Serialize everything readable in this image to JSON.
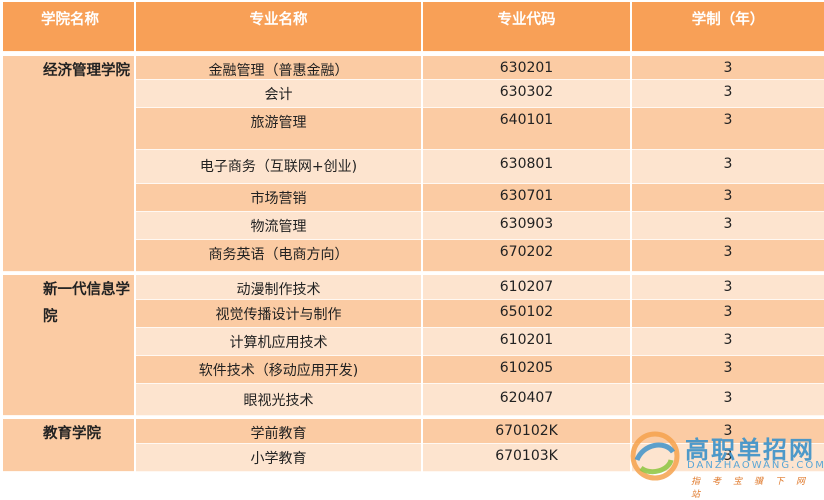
{
  "headers": [
    "学院名称",
    "专业名称",
    "专业代码",
    "学制（年）"
  ],
  "groups": [
    {
      "name": "经济管理学院",
      "rows": [
        {
          "major": "金融管理（普惠金融）",
          "code": "630201",
          "years": "3"
        },
        {
          "major": "会计",
          "code": "630302",
          "years": "3"
        },
        {
          "major": "旅游管理",
          "code": "640101",
          "years": "3"
        },
        {
          "major": "电子商务（互联网+创业)",
          "code": "630801",
          "years": "3"
        },
        {
          "major": "市场营销",
          "code": "630701",
          "years": "3"
        },
        {
          "major": "物流管理",
          "code": "630903",
          "years": "3"
        },
        {
          "major": "商务英语（电商方向）",
          "code": "670202",
          "years": "3"
        }
      ]
    },
    {
      "name": "新一代信息学院",
      "rows": [
        {
          "major": "动漫制作技术",
          "code": "610207",
          "years": "3"
        },
        {
          "major": "视觉传播设计与制作",
          "code": "650102",
          "years": "3"
        },
        {
          "major": "计算机应用技术",
          "code": "610201",
          "years": "3"
        },
        {
          "major": "软件技术（移动应用开发)",
          "code": "610205",
          "years": "3"
        },
        {
          "major": "眼视光技术",
          "code": "620407",
          "years": "3"
        }
      ]
    },
    {
      "name": "教育学院",
      "rows": [
        {
          "major": "学前教育",
          "code": "670102K",
          "years": "3"
        },
        {
          "major": "小学教育",
          "code": "670103K",
          "years": "3"
        }
      ]
    }
  ],
  "watermark": {
    "title": "高职单招网",
    "site": "DANZHAOWANG.COM",
    "slogan": "指考宝骥下网站",
    "logo_icon": "swirl-logo-icon"
  },
  "colors": {
    "header": "#f8a057",
    "row_dark": "#fbcba3",
    "row_light": "#fde4cf",
    "group": "#fbcba3"
  }
}
